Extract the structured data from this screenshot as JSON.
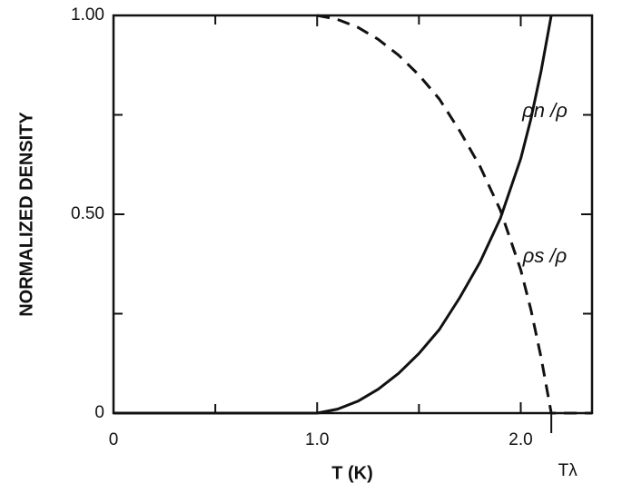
{
  "chart_data": {
    "type": "line",
    "xlabel": "T (K)",
    "ylabel": "NORMALIZED DENSITY",
    "x": [
      0,
      0.5,
      1.0,
      1.1,
      1.2,
      1.3,
      1.4,
      1.5,
      1.6,
      1.7,
      1.8,
      1.9,
      2.0,
      2.05,
      2.1,
      2.15,
      2.35
    ],
    "series": [
      {
        "name": "ρn /ρ",
        "color": "#111111",
        "dash": "solid",
        "values": [
          0,
          0,
          0,
          0.01,
          0.03,
          0.06,
          0.1,
          0.15,
          0.21,
          0.29,
          0.38,
          0.49,
          0.64,
          0.74,
          0.86,
          1.0,
          null
        ]
      },
      {
        "name": "ρs /ρ",
        "color": "#111111",
        "dash": "dashed",
        "values": [
          null,
          null,
          1.0,
          0.99,
          0.97,
          0.94,
          0.9,
          0.85,
          0.79,
          0.71,
          0.62,
          0.51,
          0.36,
          0.26,
          0.14,
          0,
          0
        ]
      }
    ],
    "xlim": [
      0,
      2.35
    ],
    "ylim": [
      0,
      1
    ],
    "xticks": [
      0,
      {
        "value": 1,
        "label": "1.0"
      },
      {
        "value": 2,
        "label": "2.0"
      }
    ],
    "xminorticks": [
      0.5,
      1.5
    ],
    "yticks": [
      0,
      {
        "value": 0.5,
        "label": "0.50"
      },
      {
        "value": 1,
        "label": "1.00"
      }
    ],
    "yminorticks": [
      0.25,
      0.75
    ],
    "annotations": [
      {
        "text": "Tλ",
        "x": 2.15
      }
    ],
    "grid": false
  }
}
